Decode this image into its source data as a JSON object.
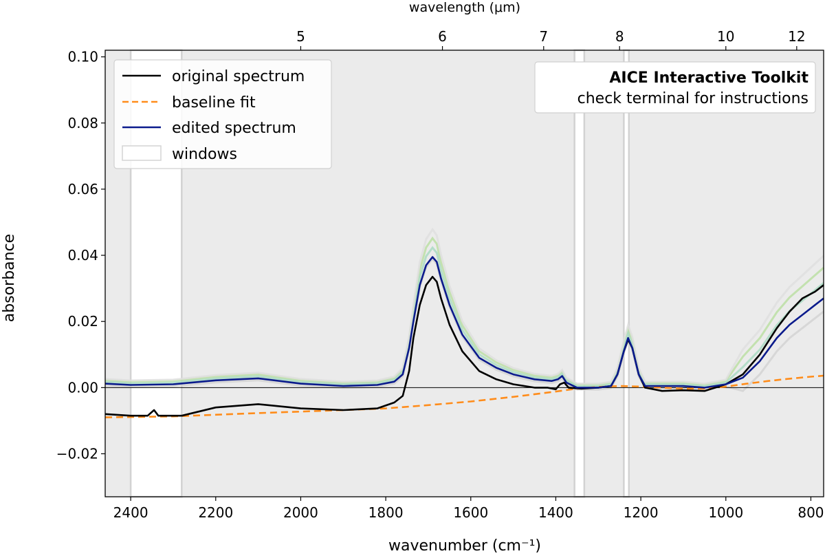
{
  "chart_data": {
    "type": "line",
    "title": "",
    "xlabel": "wavenumber (cm⁻¹)",
    "ylabel": "absorbance",
    "top_xlabel": "wavelength (μm)",
    "xlim": [
      2460,
      770
    ],
    "ylim": [
      -0.033,
      0.102
    ],
    "grid": false,
    "x_ticks": [
      2400,
      2200,
      2000,
      1800,
      1600,
      1400,
      1200,
      1000,
      800
    ],
    "x_tick_labels": [
      "2400",
      "2200",
      "2000",
      "1800",
      "1600",
      "1400",
      "1200",
      "1000",
      "800"
    ],
    "y_ticks": [
      -0.02,
      0.0,
      0.02,
      0.04,
      0.06,
      0.08,
      0.1
    ],
    "y_tick_labels": [
      "−0.02",
      "0.00",
      "0.02",
      "0.04",
      "0.06",
      "0.08",
      "0.10"
    ],
    "top_ticks_um": [
      5,
      6,
      7,
      8,
      10,
      12
    ],
    "top_tick_labels": [
      "5",
      "6",
      "7",
      "8",
      "10",
      "12"
    ],
    "windows": [
      [
        2400,
        2280
      ],
      [
        1356,
        1333
      ],
      [
        1240,
        1228
      ]
    ],
    "legend": {
      "placement": "top-left",
      "entries": [
        "original spectrum",
        "baseline fit",
        "edited spectrum",
        "windows"
      ]
    },
    "annotation": {
      "placement": "top-right",
      "title": "AICE Interactive Toolkit",
      "subtitle": "check terminal for instructions"
    },
    "series": [
      {
        "name": "original spectrum",
        "color": "#000000",
        "style": "solid",
        "points": [
          [
            2460,
            -0.008
          ],
          [
            2400,
            -0.0085
          ],
          [
            2360,
            -0.0085
          ],
          [
            2345,
            -0.0068
          ],
          [
            2335,
            -0.0085
          ],
          [
            2280,
            -0.0085
          ],
          [
            2200,
            -0.006
          ],
          [
            2100,
            -0.005
          ],
          [
            2000,
            -0.0063
          ],
          [
            1900,
            -0.0068
          ],
          [
            1820,
            -0.0063
          ],
          [
            1780,
            -0.0045
          ],
          [
            1760,
            -0.0025
          ],
          [
            1745,
            0.005
          ],
          [
            1735,
            0.015
          ],
          [
            1720,
            0.025
          ],
          [
            1705,
            0.031
          ],
          [
            1690,
            0.0335
          ],
          [
            1680,
            0.032
          ],
          [
            1670,
            0.027
          ],
          [
            1650,
            0.019
          ],
          [
            1620,
            0.011
          ],
          [
            1580,
            0.005
          ],
          [
            1540,
            0.0025
          ],
          [
            1500,
            0.001
          ],
          [
            1450,
            0.0
          ],
          [
            1420,
            0.0
          ],
          [
            1400,
            -0.0005
          ],
          [
            1390,
            0.001
          ],
          [
            1380,
            0.0015
          ],
          [
            1370,
            0.0
          ],
          [
            1340,
            -0.0003
          ],
          [
            1300,
            0.0
          ],
          [
            1270,
            0.0005
          ],
          [
            1255,
            0.004
          ],
          [
            1240,
            0.011
          ],
          [
            1230,
            0.0145
          ],
          [
            1220,
            0.012
          ],
          [
            1205,
            0.004
          ],
          [
            1190,
            0.0
          ],
          [
            1150,
            -0.001
          ],
          [
            1100,
            -0.0008
          ],
          [
            1050,
            -0.001
          ],
          [
            1000,
            0.001
          ],
          [
            960,
            0.004
          ],
          [
            920,
            0.01
          ],
          [
            880,
            0.018
          ],
          [
            850,
            0.023
          ],
          [
            820,
            0.027
          ],
          [
            790,
            0.029
          ],
          [
            770,
            0.031
          ]
        ]
      },
      {
        "name": "baseline fit",
        "color": "#ff8c1a",
        "style": "dashed",
        "points": [
          [
            2460,
            -0.009
          ],
          [
            2300,
            -0.0087
          ],
          [
            2100,
            -0.0077
          ],
          [
            1900,
            -0.0068
          ],
          [
            1800,
            -0.0063
          ],
          [
            1700,
            -0.0053
          ],
          [
            1600,
            -0.0042
          ],
          [
            1500,
            -0.0028
          ],
          [
            1400,
            -0.0012
          ],
          [
            1350,
            -0.0003
          ],
          [
            1300,
            0.0002
          ],
          [
            1250,
            0.0005
          ],
          [
            1200,
            0.0003
          ],
          [
            1150,
            0.0
          ],
          [
            1100,
            -0.0003
          ],
          [
            1050,
            -0.0003
          ],
          [
            1000,
            0.0003
          ],
          [
            950,
            0.0012
          ],
          [
            900,
            0.002
          ],
          [
            850,
            0.0027
          ],
          [
            800,
            0.0033
          ],
          [
            770,
            0.0036
          ]
        ]
      },
      {
        "name": "edited spectrum",
        "color": "#0a1a8c",
        "style": "solid",
        "points": [
          [
            2460,
            0.0012
          ],
          [
            2400,
            0.0008
          ],
          [
            2300,
            0.001
          ],
          [
            2200,
            0.0022
          ],
          [
            2100,
            0.0028
          ],
          [
            2000,
            0.0012
          ],
          [
            1900,
            0.0005
          ],
          [
            1820,
            0.0008
          ],
          [
            1780,
            0.0018
          ],
          [
            1760,
            0.004
          ],
          [
            1745,
            0.012
          ],
          [
            1735,
            0.02
          ],
          [
            1720,
            0.031
          ],
          [
            1705,
            0.037
          ],
          [
            1690,
            0.0395
          ],
          [
            1680,
            0.038
          ],
          [
            1670,
            0.033
          ],
          [
            1650,
            0.025
          ],
          [
            1620,
            0.016
          ],
          [
            1580,
            0.009
          ],
          [
            1540,
            0.006
          ],
          [
            1500,
            0.004
          ],
          [
            1450,
            0.0025
          ],
          [
            1410,
            0.002
          ],
          [
            1395,
            0.0025
          ],
          [
            1385,
            0.0035
          ],
          [
            1375,
            0.0015
          ],
          [
            1350,
            0.0
          ],
          [
            1300,
            0.0
          ],
          [
            1270,
            0.0005
          ],
          [
            1255,
            0.004
          ],
          [
            1240,
            0.011
          ],
          [
            1230,
            0.015
          ],
          [
            1220,
            0.012
          ],
          [
            1205,
            0.004
          ],
          [
            1190,
            0.0005
          ],
          [
            1150,
            0.0005
          ],
          [
            1100,
            0.0005
          ],
          [
            1050,
            0.0
          ],
          [
            1000,
            0.001
          ],
          [
            960,
            0.003
          ],
          [
            920,
            0.008
          ],
          [
            880,
            0.015
          ],
          [
            850,
            0.019
          ],
          [
            820,
            0.022
          ],
          [
            790,
            0.025
          ],
          [
            770,
            0.027
          ]
        ]
      }
    ]
  }
}
